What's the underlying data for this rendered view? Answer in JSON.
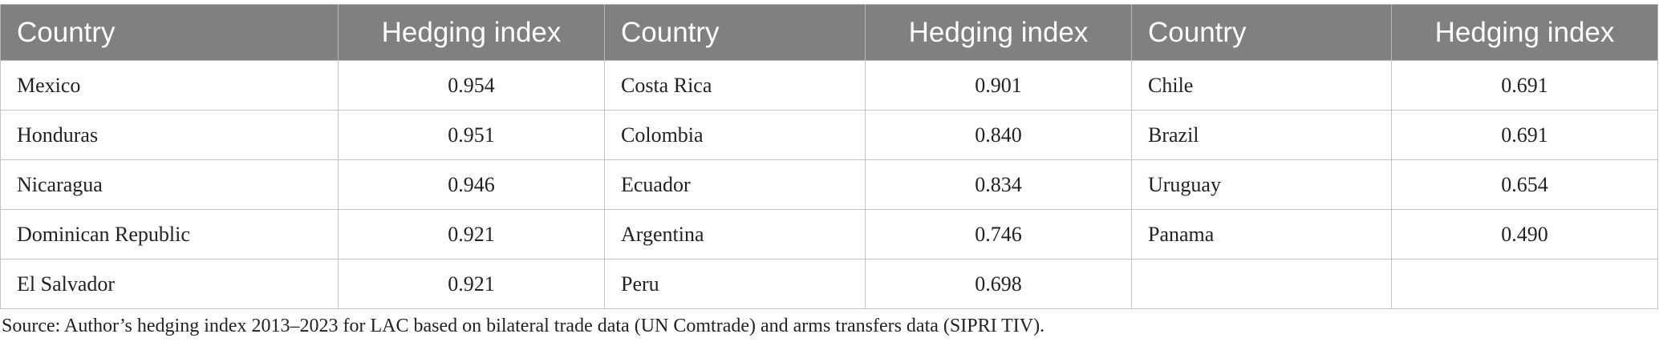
{
  "table": {
    "header": [
      "Country",
      "Hedging index",
      "Country",
      "Hedging index",
      "Country",
      "Hedging index"
    ],
    "rows": [
      [
        "Mexico",
        "0.954",
        "Costa Rica",
        "0.901",
        "Chile",
        "0.691"
      ],
      [
        "Honduras",
        "0.951",
        "Colombia",
        "0.840",
        "Brazil",
        "0.691"
      ],
      [
        "Nicaragua",
        "0.946",
        "Ecuador",
        "0.834",
        "Uruguay",
        "0.654"
      ],
      [
        "Dominican Republic",
        "0.921",
        "Argentina",
        "0.746",
        "Panama",
        "0.490"
      ],
      [
        "El Salvador",
        "0.921",
        "Peru",
        "0.698",
        null,
        null
      ]
    ]
  },
  "source": "Source: Author’s hedging index 2013–2023 for LAC based on bilateral trade data (UN Comtrade) and arms transfers data (SIPRI TIV)."
}
